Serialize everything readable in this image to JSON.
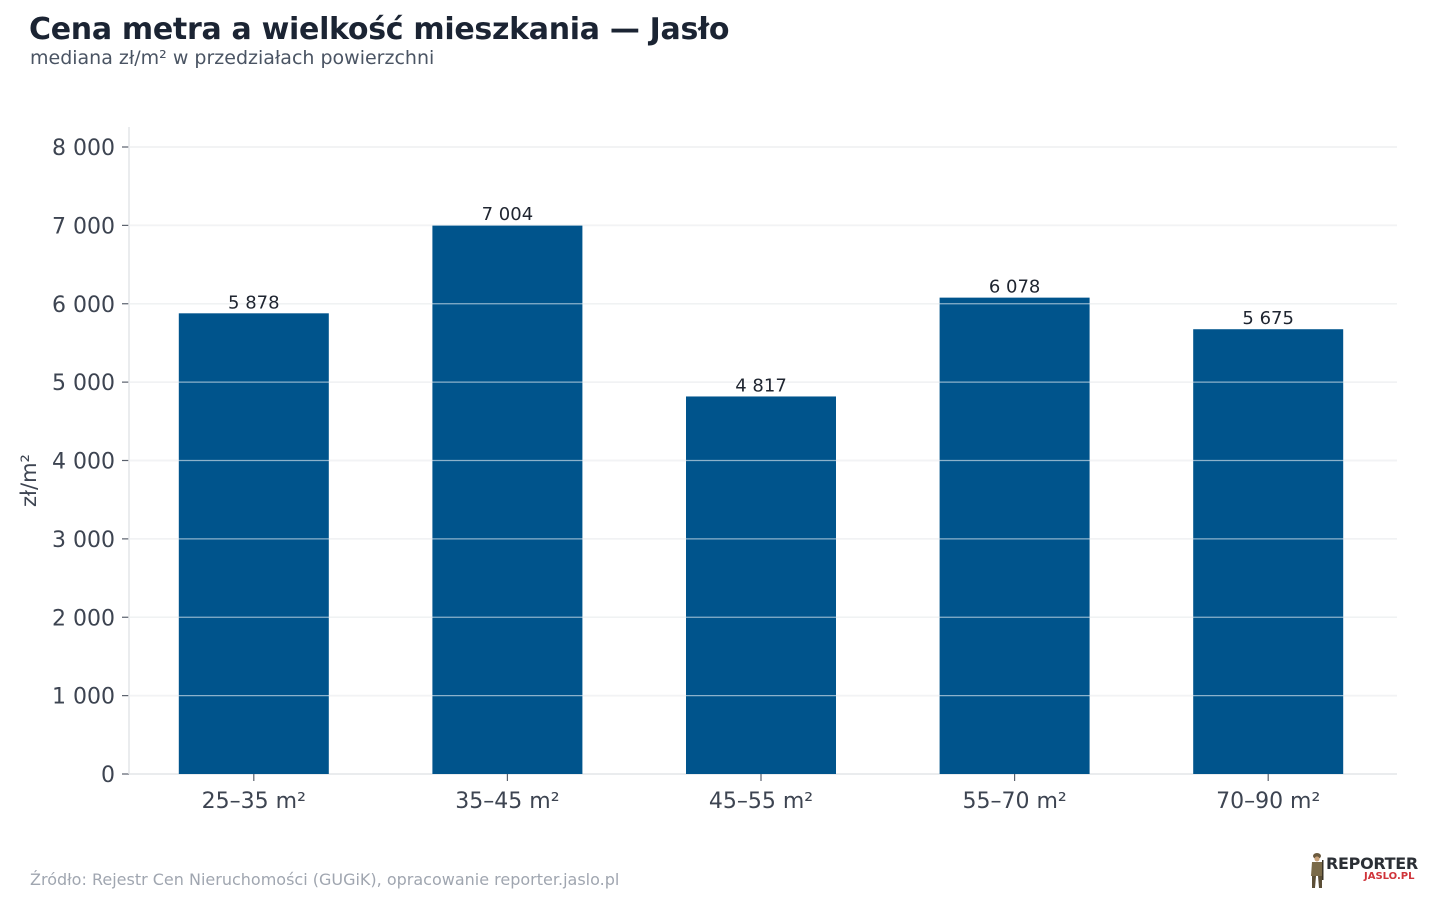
{
  "header": {
    "title": "Cena metra a wielkość mieszkania — Jasło",
    "subtitle": "mediana zł/m² w przedziałach powierzchni"
  },
  "footer": {
    "source": "Źródło: Rejestr Cen Nieruchomości (GUGiK), opracowanie reporter.jaslo.pl"
  },
  "logo": {
    "top_text": "REPORTER",
    "bottom_text": "JASLO.PL",
    "icon": "soldier-figure-icon"
  },
  "colors": {
    "bar": "#00548c",
    "grid": "#e3e5e8",
    "axis_text": "#3d4451",
    "label_text": "#1f2530"
  },
  "chart_data": {
    "type": "bar",
    "categories": [
      "25–35 m²",
      "35–45 m²",
      "45–55 m²",
      "55–70 m²",
      "70–90 m²"
    ],
    "values": [
      5878,
      7004,
      4817,
      6078,
      5675
    ],
    "value_labels": [
      "5 878",
      "7 004",
      "4 817",
      "6 078",
      "5 675"
    ],
    "title": "Cena metra a wielkość mieszkania — Jasło",
    "subtitle": "mediana zł/m² w przedziałach powierzchni",
    "xlabel": "",
    "ylabel": "zł/m²",
    "ylim": [
      0,
      8000
    ],
    "yticks": [
      0,
      1000,
      2000,
      3000,
      4000,
      5000,
      6000,
      7000,
      8000
    ],
    "ytick_labels": [
      "0",
      "1 000",
      "2 000",
      "3 000",
      "4 000",
      "5 000",
      "6 000",
      "7 000",
      "8 000"
    ],
    "grid": true,
    "legend": "none"
  }
}
